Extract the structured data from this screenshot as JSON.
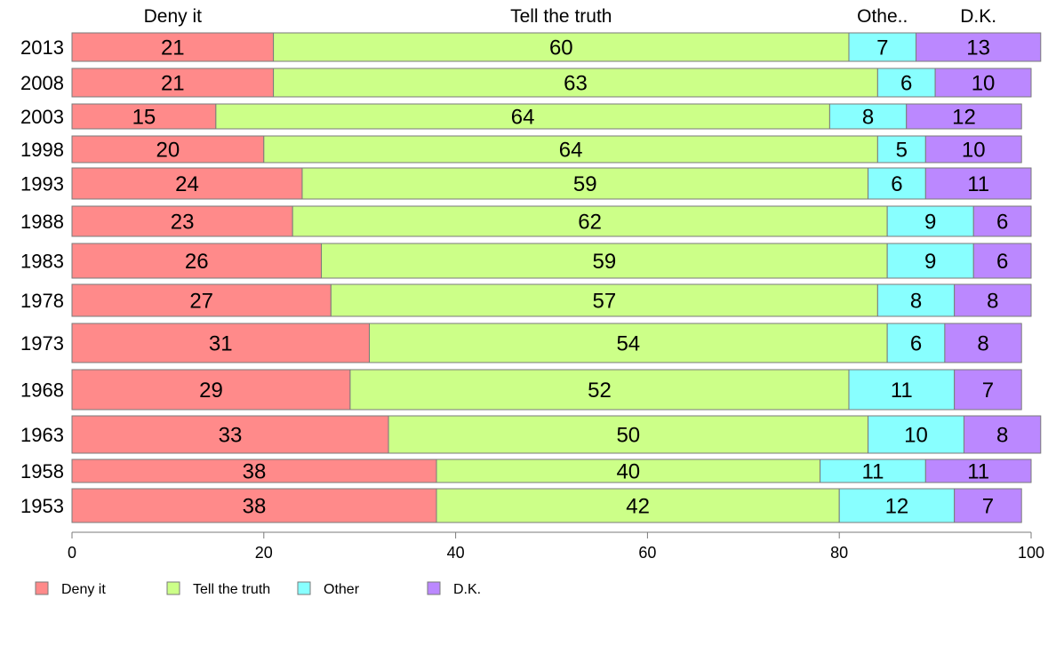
{
  "chart_data": {
    "type": "bar",
    "orientation": "horizontal",
    "stacked": true,
    "categories": [
      "2013",
      "2008",
      "2003",
      "1998",
      "1993",
      "1988",
      "1983",
      "1978",
      "1973",
      "1968",
      "1963",
      "1958",
      "1953"
    ],
    "column_headers": [
      "Deny it",
      "Tell the truth",
      "Othe..",
      "D.K."
    ],
    "series": [
      {
        "name": "Deny it",
        "color": "#ff8a8a",
        "values": [
          21,
          21,
          15,
          20,
          24,
          23,
          26,
          27,
          31,
          29,
          33,
          38,
          38
        ]
      },
      {
        "name": "Tell the truth",
        "color": "#ccff88",
        "values": [
          60,
          63,
          64,
          64,
          59,
          62,
          59,
          57,
          54,
          52,
          50,
          40,
          42
        ]
      },
      {
        "name": "Other",
        "color": "#88ffff",
        "values": [
          7,
          6,
          8,
          5,
          6,
          9,
          9,
          8,
          6,
          11,
          10,
          11,
          12
        ]
      },
      {
        "name": "D.K.",
        "color": "#bb88ff",
        "values": [
          13,
          10,
          12,
          10,
          11,
          6,
          6,
          8,
          8,
          7,
          8,
          11,
          7
        ]
      }
    ],
    "xlim": [
      0,
      100
    ],
    "xticks": [
      0,
      20,
      40,
      60,
      80,
      100
    ],
    "xlabel": "",
    "ylabel": "",
    "title": "",
    "grid": false,
    "legend_position": "bottom"
  }
}
